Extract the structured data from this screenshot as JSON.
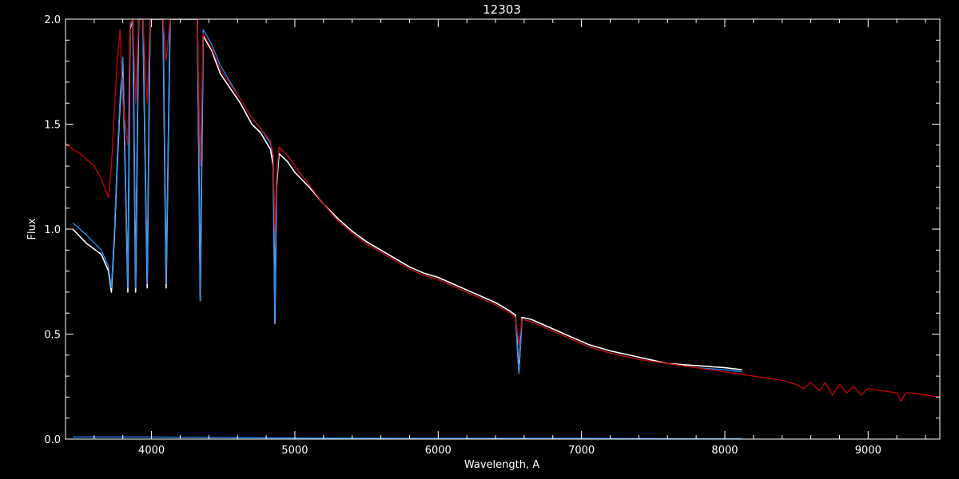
{
  "chart_data": {
    "type": "line",
    "title": "12303",
    "xlabel": "Wavelength, A",
    "ylabel": "Flux",
    "xlim": [
      3400,
      9500
    ],
    "ylim": [
      0.0,
      2.0
    ],
    "xticks": [
      4000,
      5000,
      6000,
      7000,
      8000,
      9000
    ],
    "xtick_labels": [
      "4000",
      "5000",
      "6000",
      "7000",
      "8000",
      "9000"
    ],
    "yticks": [
      0.0,
      0.5,
      1.0,
      1.5,
      2.0
    ],
    "ytick_labels": [
      "0.0",
      "0.5",
      "1.0",
      "1.5",
      "2.0"
    ],
    "grid": false,
    "colors": {
      "background": "#000000",
      "axes": "#ffffff"
    },
    "series": [
      {
        "color": "#ffffff",
        "style": "observed spectrum (noisy)",
        "x": [
          3450,
          3550,
          3650,
          3700,
          3720,
          3740,
          3760,
          3780,
          3800,
          3835,
          3850,
          3870,
          3889,
          3910,
          3940,
          3970,
          3990,
          4030,
          4080,
          4102,
          4130,
          4200,
          4280,
          4320,
          4340,
          4360,
          4420,
          4480,
          4550,
          4620,
          4700,
          4760,
          4830,
          4850,
          4861,
          4872,
          4890,
          4950,
          5000,
          5100,
          5200,
          5300,
          5400,
          5500,
          5600,
          5700,
          5800,
          5900,
          6000,
          6100,
          6200,
          6300,
          6400,
          6500,
          6540,
          6563,
          6585,
          6650,
          6750,
          6850,
          6950,
          7050,
          7200,
          7400,
          7600,
          7800,
          8000,
          8120
        ],
        "y": [
          1.0,
          0.93,
          0.88,
          0.8,
          0.7,
          0.95,
          1.3,
          1.6,
          1.8,
          0.7,
          1.95,
          2.0,
          0.7,
          2.0,
          2.0,
          0.72,
          2.0,
          2.0,
          2.0,
          0.72,
          2.0,
          2.0,
          2.0,
          2.0,
          0.66,
          1.92,
          1.85,
          1.74,
          1.67,
          1.6,
          1.5,
          1.46,
          1.38,
          1.3,
          0.55,
          1.2,
          1.36,
          1.32,
          1.27,
          1.2,
          1.12,
          1.05,
          0.99,
          0.94,
          0.9,
          0.86,
          0.82,
          0.79,
          0.77,
          0.74,
          0.71,
          0.68,
          0.65,
          0.61,
          0.59,
          0.32,
          0.58,
          0.57,
          0.54,
          0.51,
          0.48,
          0.45,
          0.42,
          0.39,
          0.36,
          0.35,
          0.34,
          0.33
        ]
      },
      {
        "color": "#1e90ff",
        "style": "observed spectrum",
        "x": [
          3450,
          3550,
          3650,
          3700,
          3720,
          3740,
          3760,
          3780,
          3800,
          3835,
          3850,
          3870,
          3889,
          3910,
          3940,
          3970,
          3990,
          4030,
          4080,
          4102,
          4130,
          4200,
          4280,
          4320,
          4340,
          4360,
          4420,
          4480,
          4550,
          4620,
          4700,
          4760,
          4830,
          4850,
          4861,
          4872,
          4890,
          4950,
          5000,
          5100,
          5200,
          5300,
          5400,
          5500,
          5600,
          5700,
          5800,
          5900,
          6000,
          6100,
          6200,
          6300,
          6400,
          6500,
          6540,
          6563,
          6585,
          6650,
          6750,
          6850,
          6950,
          7050,
          7200,
          7400,
          7600,
          7800,
          8000,
          8120
        ],
        "y": [
          1.03,
          0.97,
          0.9,
          0.82,
          0.72,
          0.97,
          1.32,
          1.62,
          1.82,
          0.72,
          1.96,
          2.0,
          0.72,
          2.0,
          2.0,
          0.74,
          2.0,
          2.0,
          2.0,
          0.74,
          2.0,
          2.0,
          2.0,
          2.0,
          0.66,
          1.95,
          1.88,
          1.78,
          1.7,
          1.62,
          1.53,
          1.48,
          1.41,
          1.33,
          0.55,
          1.22,
          1.39,
          1.35,
          1.3,
          1.21,
          1.12,
          1.04,
          0.98,
          0.93,
          0.89,
          0.85,
          0.81,
          0.78,
          0.76,
          0.73,
          0.7,
          0.67,
          0.64,
          0.6,
          0.58,
          0.31,
          0.57,
          0.56,
          0.53,
          0.5,
          0.47,
          0.44,
          0.41,
          0.38,
          0.36,
          0.34,
          0.33,
          0.32
        ]
      },
      {
        "color": "#cc0000",
        "style": "model spectrum",
        "x": [
          3400,
          3450,
          3500,
          3550,
          3600,
          3650,
          3700,
          3720,
          3740,
          3760,
          3780,
          3800,
          3835,
          3850,
          3870,
          3889,
          3910,
          3940,
          3970,
          3990,
          4030,
          4080,
          4102,
          4130,
          4200,
          4280,
          4320,
          4340,
          4360,
          4420,
          4480,
          4550,
          4620,
          4700,
          4760,
          4830,
          4850,
          4861,
          4872,
          4890,
          4950,
          5000,
          5100,
          5200,
          5300,
          5400,
          5500,
          5600,
          5700,
          5800,
          5900,
          6000,
          6100,
          6200,
          6300,
          6400,
          6500,
          6540,
          6563,
          6585,
          6650,
          6750,
          6850,
          6950,
          7050,
          7200,
          7400,
          7600,
          7800,
          8000,
          8200,
          8400,
          8500,
          8550,
          8600,
          8660,
          8700,
          8750,
          8800,
          8850,
          8900,
          8950,
          9000,
          9100,
          9200,
          9230,
          9260,
          9300,
          9400,
          9500
        ],
        "y": [
          1.41,
          1.38,
          1.36,
          1.33,
          1.3,
          1.24,
          1.15,
          1.3,
          1.55,
          1.8,
          1.95,
          1.6,
          1.4,
          1.98,
          2.0,
          1.6,
          2.0,
          2.0,
          1.6,
          2.0,
          2.0,
          2.0,
          1.8,
          2.0,
          2.0,
          2.0,
          2.0,
          1.3,
          1.93,
          1.86,
          1.76,
          1.69,
          1.62,
          1.53,
          1.48,
          1.42,
          1.35,
          0.99,
          1.25,
          1.39,
          1.35,
          1.3,
          1.21,
          1.12,
          1.04,
          0.98,
          0.93,
          0.89,
          0.85,
          0.81,
          0.78,
          0.76,
          0.73,
          0.7,
          0.67,
          0.64,
          0.6,
          0.58,
          0.45,
          0.57,
          0.56,
          0.53,
          0.5,
          0.47,
          0.44,
          0.41,
          0.38,
          0.36,
          0.34,
          0.32,
          0.3,
          0.28,
          0.26,
          0.24,
          0.27,
          0.23,
          0.27,
          0.21,
          0.26,
          0.22,
          0.25,
          0.21,
          0.24,
          0.23,
          0.22,
          0.18,
          0.22,
          0.22,
          0.21,
          0.2
        ]
      },
      {
        "color": "#1e90ff",
        "style": "error spectrum",
        "x": [
          3450,
          4000,
          5000,
          6000,
          7000,
          8000,
          8120
        ],
        "y": [
          0.01,
          0.01,
          0.005,
          0.003,
          0.003,
          0.002,
          0.002
        ]
      }
    ]
  }
}
